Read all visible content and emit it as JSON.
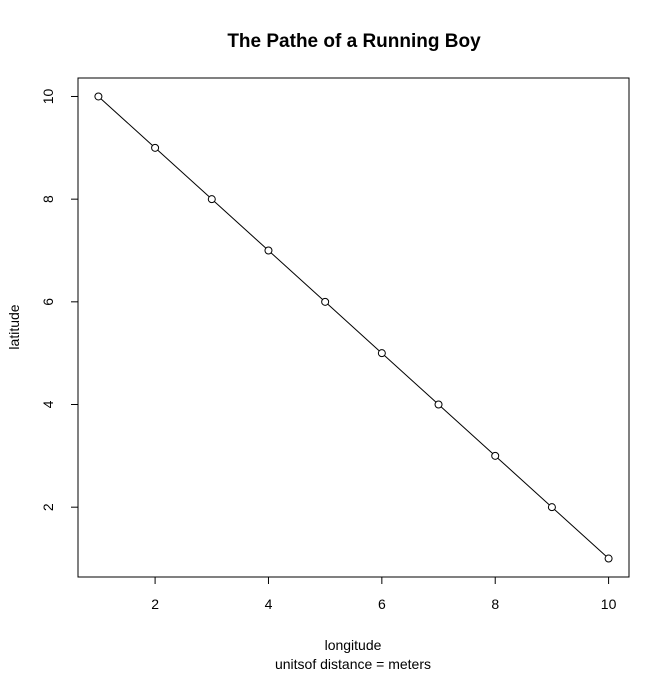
{
  "chart_data": {
    "type": "line",
    "title": "The Pathe of a Running Boy",
    "xlabel": "longitude",
    "sublabel": "unitsof distance = meters",
    "ylabel": "latitude",
    "x": [
      1,
      2,
      3,
      4,
      5,
      6,
      7,
      8,
      9,
      10
    ],
    "y": [
      10,
      9,
      8,
      7,
      6,
      5,
      4,
      3,
      2,
      1
    ],
    "xlim": [
      0.64,
      10.36
    ],
    "ylim": [
      0.64,
      10.36
    ],
    "xticks": [
      2,
      4,
      6,
      8,
      10
    ],
    "yticks": [
      2,
      4,
      6,
      8,
      10
    ],
    "markers": "open-circle",
    "line_color": "#000000",
    "grid": false,
    "legend": "none"
  }
}
